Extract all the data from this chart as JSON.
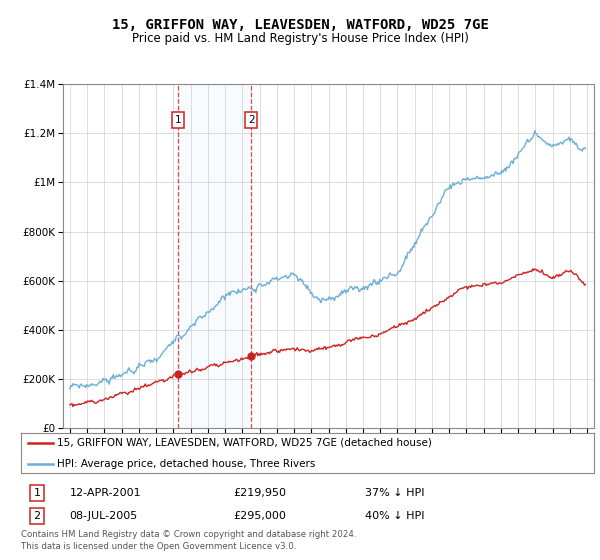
{
  "title": "15, GRIFFON WAY, LEAVESDEN, WATFORD, WD25 7GE",
  "subtitle": "Price paid vs. HM Land Registry's House Price Index (HPI)",
  "sale1_date": "12-APR-2001",
  "sale1_price": 219950,
  "sale1_label": "37% ↓ HPI",
  "sale2_date": "08-JUL-2005",
  "sale2_price": 295000,
  "sale2_label": "40% ↓ HPI",
  "legend_line1": "15, GRIFFON WAY, LEAVESDEN, WATFORD, WD25 7GE (detached house)",
  "legend_line2": "HPI: Average price, detached house, Three Rivers",
  "footer": "Contains HM Land Registry data © Crown copyright and database right 2024.\nThis data is licensed under the Open Government Licence v3.0.",
  "hpi_color": "#6baed6",
  "price_color": "#cc2222",
  "ylim": [
    0,
    1400000
  ],
  "yticks": [
    0,
    200000,
    400000,
    600000,
    800000,
    1000000,
    1200000,
    1400000
  ],
  "xlim_start": 1994.6,
  "xlim_end": 2025.4,
  "sale1_x": 2001.28,
  "sale2_x": 2005.52
}
